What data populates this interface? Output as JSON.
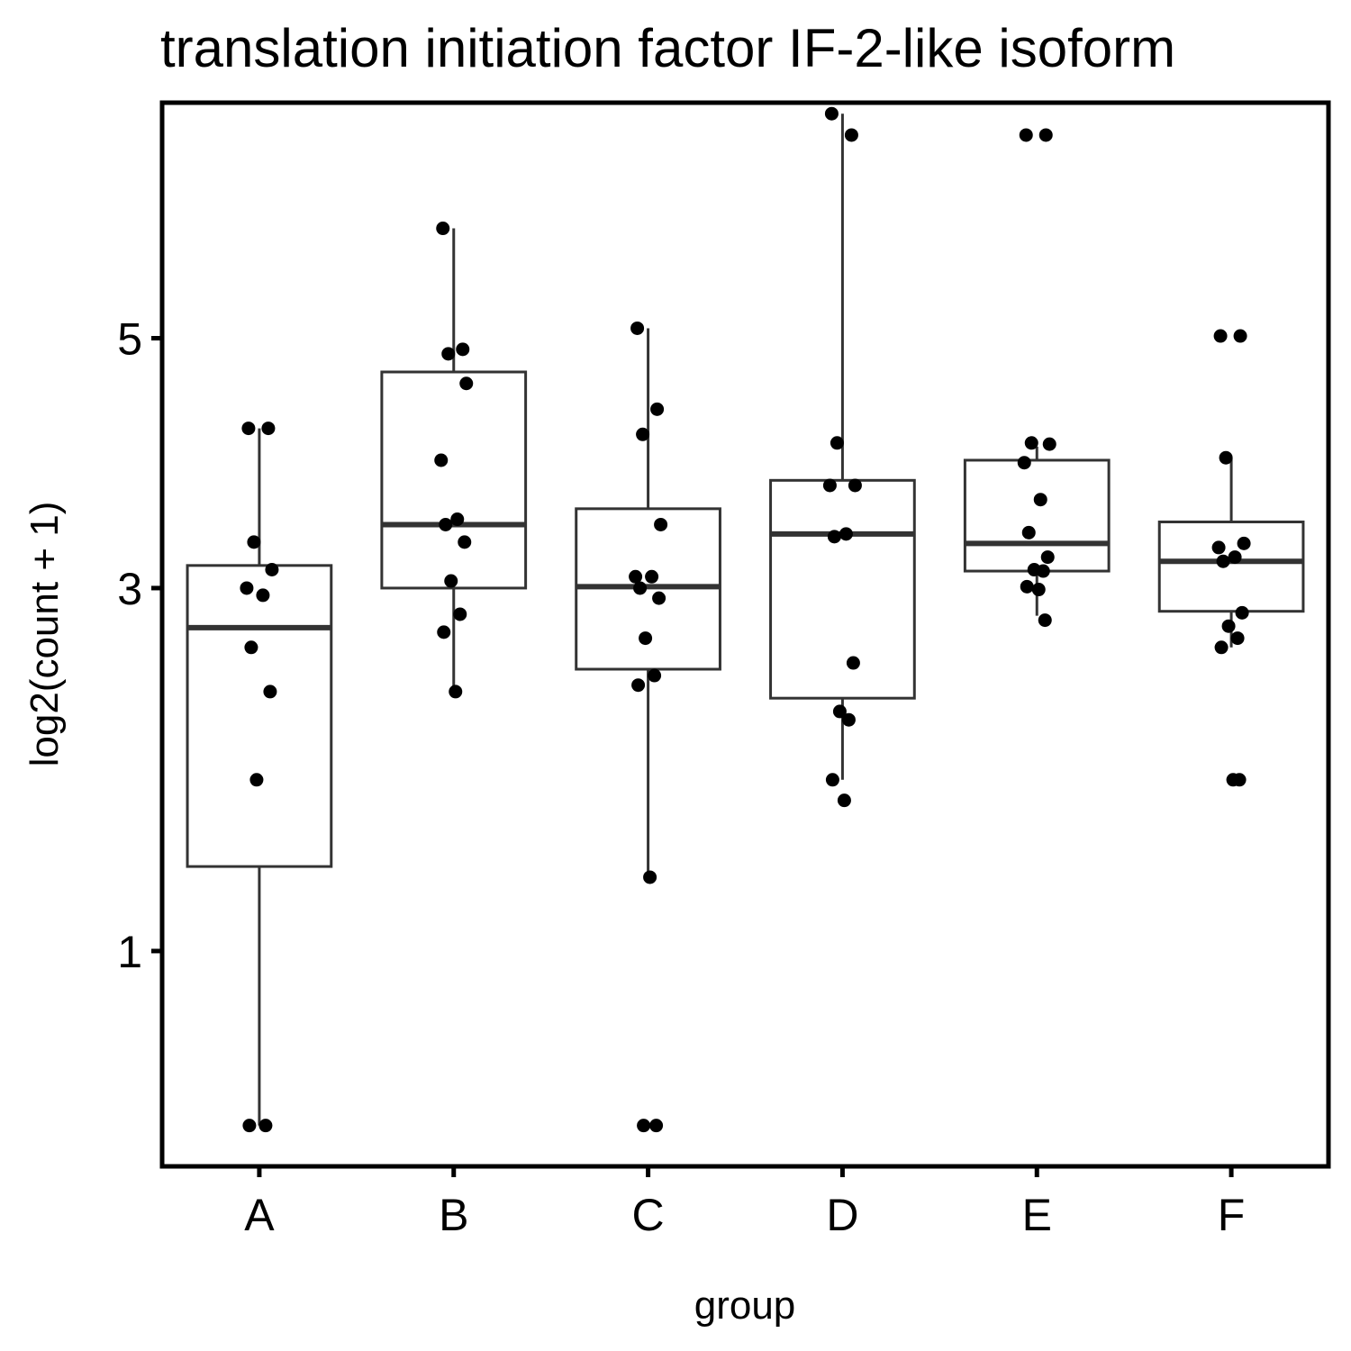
{
  "chart_data": {
    "type": "boxplot",
    "title": "translation initiation factor IF-2-like isoform",
    "xlabel": "group",
    "ylabel": "log2(count + 1)",
    "y_scale": "sqrt",
    "ylim": [
      0.32,
      7.35
    ],
    "yticks": [
      1,
      3,
      5
    ],
    "ytick_labels": [
      "1",
      "3",
      "5"
    ],
    "categories": [
      "A",
      "B",
      "C",
      "D",
      "E",
      "F"
    ],
    "boxes": [
      {
        "group": "A",
        "lower_whisker": 0.42,
        "q1": 1.37,
        "median": 2.73,
        "q3": 3.16,
        "upper_whisker": 4.22
      },
      {
        "group": "B",
        "lower_whisker": 2.32,
        "q1": 3.0,
        "median": 3.46,
        "q3": 4.7,
        "upper_whisker": 6.04
      },
      {
        "group": "C",
        "lower_whisker": 1.32,
        "q1": 2.46,
        "median": 3.01,
        "q3": 3.58,
        "upper_whisker": 5.09
      },
      {
        "group": "D",
        "lower_whisker": 1.81,
        "q1": 2.28,
        "median": 3.39,
        "q3": 3.8,
        "upper_whisker": 7.23
      },
      {
        "group": "E",
        "lower_whisker": 2.81,
        "q1": 3.12,
        "median": 3.32,
        "q3": 3.96,
        "upper_whisker": 4.07
      },
      {
        "group": "F",
        "lower_whisker": 2.6,
        "q1": 2.84,
        "median": 3.19,
        "q3": 3.48,
        "upper_whisker": 3.98
      }
    ],
    "points": [
      {
        "group": "A",
        "y": [
          4.22,
          4.22,
          3.33,
          3.13,
          3.0,
          2.95,
          2.6,
          2.32,
          1.81,
          0.42,
          0.42
        ]
      },
      {
        "group": "B",
        "y": [
          6.04,
          4.9,
          4.86,
          4.6,
          3.96,
          3.5,
          3.46,
          3.33,
          3.05,
          2.82,
          2.7,
          2.32
        ]
      },
      {
        "group": "C",
        "y": [
          5.09,
          4.38,
          4.17,
          3.46,
          3.08,
          3.08,
          3.0,
          2.93,
          2.66,
          2.42,
          2.36,
          1.32,
          0.42,
          0.42
        ]
      },
      {
        "group": "D",
        "y": [
          7.23,
          7.0,
          4.1,
          3.76,
          3.76,
          3.39,
          3.37,
          2.5,
          2.2,
          2.15,
          1.81,
          1.7
        ]
      },
      {
        "group": "E",
        "y": [
          7.0,
          7.0,
          4.1,
          4.09,
          3.94,
          3.65,
          3.4,
          3.22,
          3.13,
          3.12,
          3.01,
          2.99,
          2.78
        ]
      },
      {
        "group": "F",
        "y": [
          5.02,
          5.02,
          3.98,
          3.32,
          3.29,
          3.22,
          3.19,
          2.83,
          2.74,
          2.66,
          2.6,
          1.81,
          1.81
        ]
      }
    ]
  }
}
